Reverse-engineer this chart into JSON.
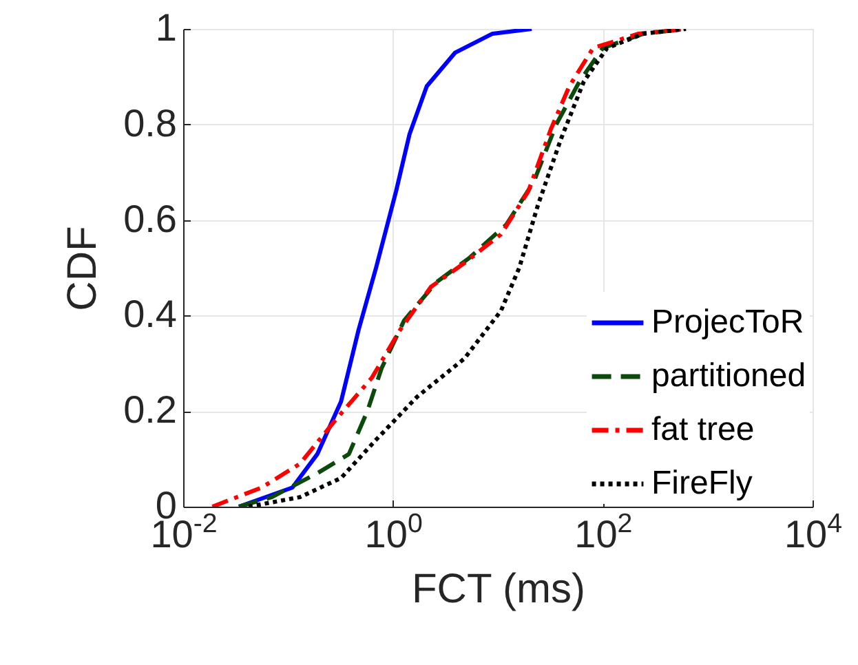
{
  "chart_data": {
    "type": "line",
    "xlabel": "FCT (ms)",
    "ylabel": "CDF",
    "log": "x",
    "xlim": [
      0.01,
      10000
    ],
    "xticks": [
      {
        "value": 0.01,
        "label": "10$^{-2}$"
      },
      {
        "value": 1,
        "label": "10$^{0}$"
      },
      {
        "value": 100,
        "label": "10$^{2}$"
      },
      {
        "value": 10000,
        "label": "10$^{4}$"
      }
    ],
    "ylim": [
      0,
      1
    ],
    "yticks": [
      0,
      0.2,
      0.4,
      0.6,
      0.8,
      1
    ],
    "grid": true,
    "legend": "bottom right",
    "series": [
      {
        "name": "ProjecToR",
        "color": "#0000ff",
        "line_style": "solid",
        "x": [
          0.034,
          0.11,
          0.19,
          0.32,
          0.47,
          0.69,
          1.07,
          1.44,
          2.1,
          3.9,
          8.9,
          21
        ],
        "values": [
          0,
          0.04,
          0.11,
          0.22,
          0.37,
          0.5,
          0.66,
          0.78,
          0.88,
          0.95,
          0.99,
          1
        ]
      },
      {
        "name": "partitioned",
        "color": "#0b4a0b",
        "line_style": "dashed",
        "x": [
          0.034,
          0.07,
          0.19,
          0.38,
          0.57,
          0.78,
          1.28,
          2.6,
          5.3,
          12,
          22,
          36,
          60,
          100,
          245,
          620
        ],
        "values": [
          0,
          0.02,
          0.07,
          0.11,
          0.2,
          0.29,
          0.39,
          0.47,
          0.52,
          0.59,
          0.68,
          0.8,
          0.89,
          0.96,
          0.99,
          1
        ]
      },
      {
        "name": "fat tree",
        "color": "#ff0000",
        "line_style": "dashdot",
        "x": [
          0.019,
          0.056,
          0.13,
          0.28,
          0.63,
          1.17,
          2.3,
          4.8,
          10.7,
          19.5,
          32,
          48,
          81,
          220,
          620
        ],
        "values": [
          0,
          0.04,
          0.09,
          0.18,
          0.27,
          0.37,
          0.46,
          0.51,
          0.57,
          0.66,
          0.79,
          0.88,
          0.96,
          0.99,
          1
        ]
      },
      {
        "name": "FireFly",
        "color": "#000000",
        "line_style": "dotted",
        "x": [
          0.042,
          0.13,
          0.32,
          0.69,
          1.7,
          4.8,
          10.7,
          16,
          24,
          40,
          66,
          110,
          245,
          620
        ],
        "values": [
          0,
          0.02,
          0.06,
          0.14,
          0.23,
          0.31,
          0.41,
          0.5,
          0.63,
          0.77,
          0.89,
          0.96,
          0.99,
          1
        ]
      }
    ]
  }
}
